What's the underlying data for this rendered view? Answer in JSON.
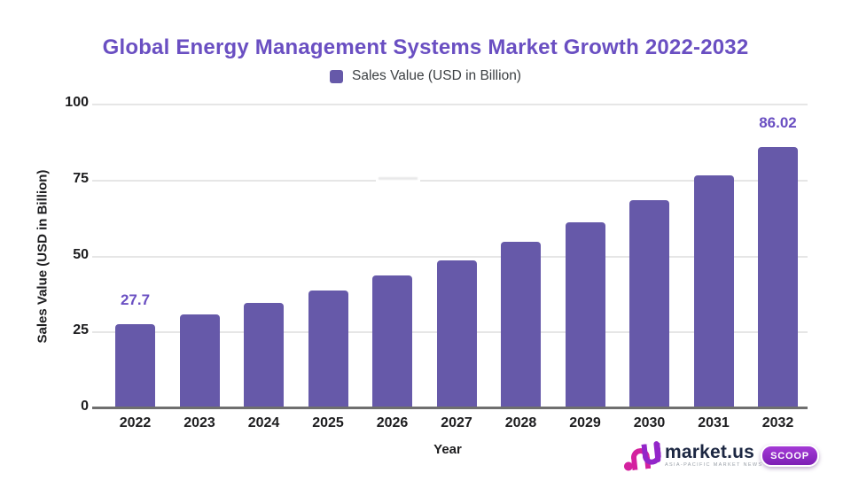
{
  "colors": {
    "accent_purple": "#6a4fc2",
    "bar_fill": "#6659a9",
    "gridline": "#e6e6e6",
    "axis_line": "#6f6f6f",
    "axis_text": "#1d1d1f",
    "legend_text": "#3c4043",
    "logo_navy": "#1c2742",
    "logo_magenta": "#d4219f",
    "logo_purple": "#9326c9"
  },
  "chart_data": {
    "type": "bar",
    "title": "Global Energy Management Systems Market Growth 2022-2032",
    "legend": "Sales Value (USD in Billion)",
    "legend_position": "top",
    "xlabel": "Year",
    "ylabel": "Sales Value (USD in Billion)",
    "categories": [
      "2022",
      "2023",
      "2024",
      "2025",
      "2026",
      "2027",
      "2028",
      "2029",
      "2030",
      "2031",
      "2032"
    ],
    "values": [
      27.7,
      31.0,
      34.7,
      38.9,
      43.6,
      48.8,
      54.7,
      61.2,
      68.6,
      76.8,
      86.02
    ],
    "point_labels": [
      {
        "index": 0,
        "text": "27.7"
      },
      {
        "index": 10,
        "text": "86.02"
      }
    ],
    "ylim": [
      0,
      100
    ],
    "y_ticks": [
      0,
      25,
      50,
      75,
      100
    ],
    "grid": true,
    "bar_color": "#6659a9"
  },
  "footer_logo": {
    "brand": "market.us",
    "tagline": "ASIA-PACIFIC MARKET NEWS",
    "badge": "SCOOP"
  }
}
